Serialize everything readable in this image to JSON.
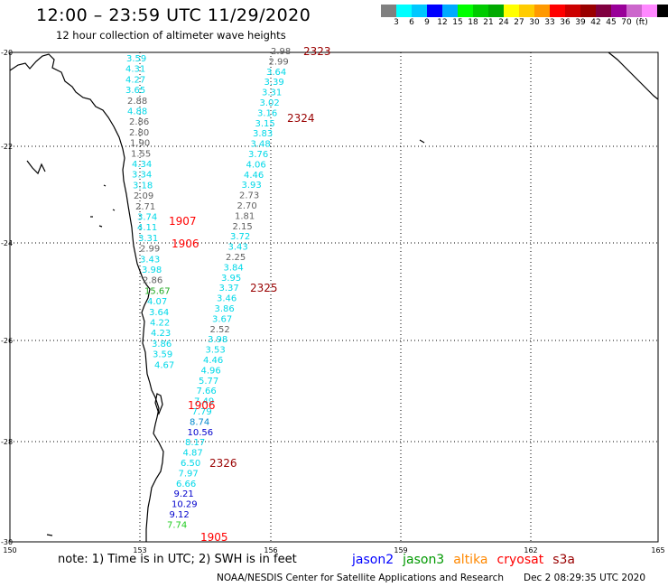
{
  "header": {
    "title": "12:00 – 23:59 UTC 11/29/2020",
    "subtitle": "12 hour collection of altimeter wave heights"
  },
  "legend": {
    "swatches": [
      "#808080",
      "#00ffff",
      "#00c8ff",
      "#0000ff",
      "#00aaff",
      "#00ff00",
      "#00cc00",
      "#00aa00",
      "#ffff00",
      "#ffcc00",
      "#ff9900",
      "#ff0000",
      "#cc0000",
      "#990000",
      "#800040",
      "#990099",
      "#cc66cc",
      "#ff88ff",
      "#000000"
    ],
    "labels": [
      "3",
      "6",
      "9",
      "12",
      "15",
      "18",
      "21",
      "24",
      "27",
      "30",
      "33",
      "36",
      "39",
      "42",
      "45",
      "70",
      "(ft)"
    ]
  },
  "axes": {
    "lat_labels": [
      "-20",
      "-22",
      "-24",
      "-26",
      "-28",
      "-30"
    ],
    "lon_labels": [
      "150",
      "153",
      "156",
      "159",
      "162",
      "165"
    ]
  },
  "track_labels": [
    {
      "text": "2323",
      "color": "#990000"
    },
    {
      "text": "2324",
      "color": "#990000"
    },
    {
      "text": "2325",
      "color": "#990000"
    },
    {
      "text": "2326",
      "color": "#990000"
    },
    {
      "text": "1907",
      "color": "#ff0000"
    },
    {
      "text": "1906",
      "color": "#ff0000"
    },
    {
      "text": "1906",
      "color": "#ff0000"
    },
    {
      "text": "1905",
      "color": "#ff0000"
    }
  ],
  "west_track": [
    {
      "v": "3.59",
      "c": "#00d8e8"
    },
    {
      "v": "4.31",
      "c": "#00d8e8"
    },
    {
      "v": "4.27",
      "c": "#00d8e8"
    },
    {
      "v": "3.65",
      "c": "#00d8e8"
    },
    {
      "v": "2.88",
      "c": "#606060"
    },
    {
      "v": "4.88",
      "c": "#00d8e8"
    },
    {
      "v": "2.86",
      "c": "#606060"
    },
    {
      "v": "2.80",
      "c": "#606060"
    },
    {
      "v": "1.90",
      "c": "#606060"
    },
    {
      "v": "1.55",
      "c": "#606060"
    },
    {
      "v": "4.34",
      "c": "#00d8e8"
    },
    {
      "v": "3.34",
      "c": "#00d8e8"
    },
    {
      "v": "3.18",
      "c": "#00d8e8"
    },
    {
      "v": "2.09",
      "c": "#606060"
    },
    {
      "v": "2.71",
      "c": "#606060"
    },
    {
      "v": "3.74",
      "c": "#00d8e8"
    },
    {
      "v": "4.11",
      "c": "#00d8e8"
    },
    {
      "v": "3.31",
      "c": "#00d8e8"
    },
    {
      "v": "2.99",
      "c": "#606060"
    },
    {
      "v": "3.43",
      "c": "#00d8e8"
    },
    {
      "v": "3.98",
      "c": "#00d8e8"
    },
    {
      "v": "2.86",
      "c": "#606060"
    },
    {
      "v": "15.67",
      "c": "#22aa22"
    },
    {
      "v": "4.07",
      "c": "#00d8e8"
    },
    {
      "v": "3.64",
      "c": "#00d8e8"
    },
    {
      "v": "4.22",
      "c": "#00d8e8"
    },
    {
      "v": "4.23",
      "c": "#00d8e8"
    },
    {
      "v": "3.86",
      "c": "#00d8e8"
    },
    {
      "v": "3.59",
      "c": "#00d8e8"
    },
    {
      "v": "4.67",
      "c": "#00d8e8"
    }
  ],
  "east_track": [
    {
      "v": "2.98",
      "c": "#606060"
    },
    {
      "v": "2.99",
      "c": "#606060"
    },
    {
      "v": "3.64",
      "c": "#00d8e8"
    },
    {
      "v": "3.39",
      "c": "#00d8e8"
    },
    {
      "v": "3.31",
      "c": "#00d8e8"
    },
    {
      "v": "3.02",
      "c": "#00d8e8"
    },
    {
      "v": "3.16",
      "c": "#00d8e8"
    },
    {
      "v": "3.15",
      "c": "#00d8e8"
    },
    {
      "v": "3.83",
      "c": "#00d8e8"
    },
    {
      "v": "3.48",
      "c": "#00d8e8"
    },
    {
      "v": "3.76",
      "c": "#00d8e8"
    },
    {
      "v": "4.06",
      "c": "#00d8e8"
    },
    {
      "v": "4.46",
      "c": "#00d8e8"
    },
    {
      "v": "3.93",
      "c": "#00d8e8"
    },
    {
      "v": "2.73",
      "c": "#606060"
    },
    {
      "v": "2.70",
      "c": "#606060"
    },
    {
      "v": "1.81",
      "c": "#606060"
    },
    {
      "v": "2.15",
      "c": "#606060"
    },
    {
      "v": "3.72",
      "c": "#00d8e8"
    },
    {
      "v": "3.43",
      "c": "#00d8e8"
    },
    {
      "v": "2.25",
      "c": "#606060"
    },
    {
      "v": "3.84",
      "c": "#00d8e8"
    },
    {
      "v": "3.95",
      "c": "#00d8e8"
    },
    {
      "v": "3.37",
      "c": "#00d8e8"
    },
    {
      "v": "3.46",
      "c": "#00d8e8"
    },
    {
      "v": "3.86",
      "c": "#00d8e8"
    },
    {
      "v": "3.67",
      "c": "#00d8e8"
    },
    {
      "v": "2.52",
      "c": "#606060"
    },
    {
      "v": "3.98",
      "c": "#00d8e8"
    },
    {
      "v": "3.53",
      "c": "#00d8e8"
    },
    {
      "v": "4.46",
      "c": "#00d8e8"
    },
    {
      "v": "4.96",
      "c": "#00d8e8"
    },
    {
      "v": "5.77",
      "c": "#00d8e8"
    },
    {
      "v": "7.66",
      "c": "#00d8e8"
    },
    {
      "v": "7.49",
      "c": "#00d8e8"
    },
    {
      "v": "7.79",
      "c": "#00d8e8"
    },
    {
      "v": "8.74",
      "c": "#0088cc"
    },
    {
      "v": "10.56",
      "c": "#0000cc"
    },
    {
      "v": "8.17",
      "c": "#00d8e8"
    },
    {
      "v": "4.87",
      "c": "#00d8e8"
    },
    {
      "v": "6.50",
      "c": "#00d8e8"
    },
    {
      "v": "7.97",
      "c": "#00d8e8"
    },
    {
      "v": "6.66",
      "c": "#00d8e8"
    },
    {
      "v": "9.21",
      "c": "#0000cc"
    },
    {
      "v": "10.29",
      "c": "#0000cc"
    },
    {
      "v": "9.12",
      "c": "#0000cc"
    },
    {
      "v": "7.74",
      "c": "#22cc22"
    }
  ],
  "footer": {
    "note": "note: 1) Time is in UTC; 2) SWH is in feet",
    "satellites": [
      {
        "name": "jason2",
        "color": "#0000ff"
      },
      {
        "name": "jason3",
        "color": "#009900"
      },
      {
        "name": "altika",
        "color": "#ff8800"
      },
      {
        "name": "cryosat",
        "color": "#ff0000"
      },
      {
        "name": "s3a",
        "color": "#990000"
      }
    ],
    "credit": "NOAA/NESDIS Center for Satellite Applications and Research",
    "timestamp": "Dec  2 08:29:35 UTC 2020"
  }
}
